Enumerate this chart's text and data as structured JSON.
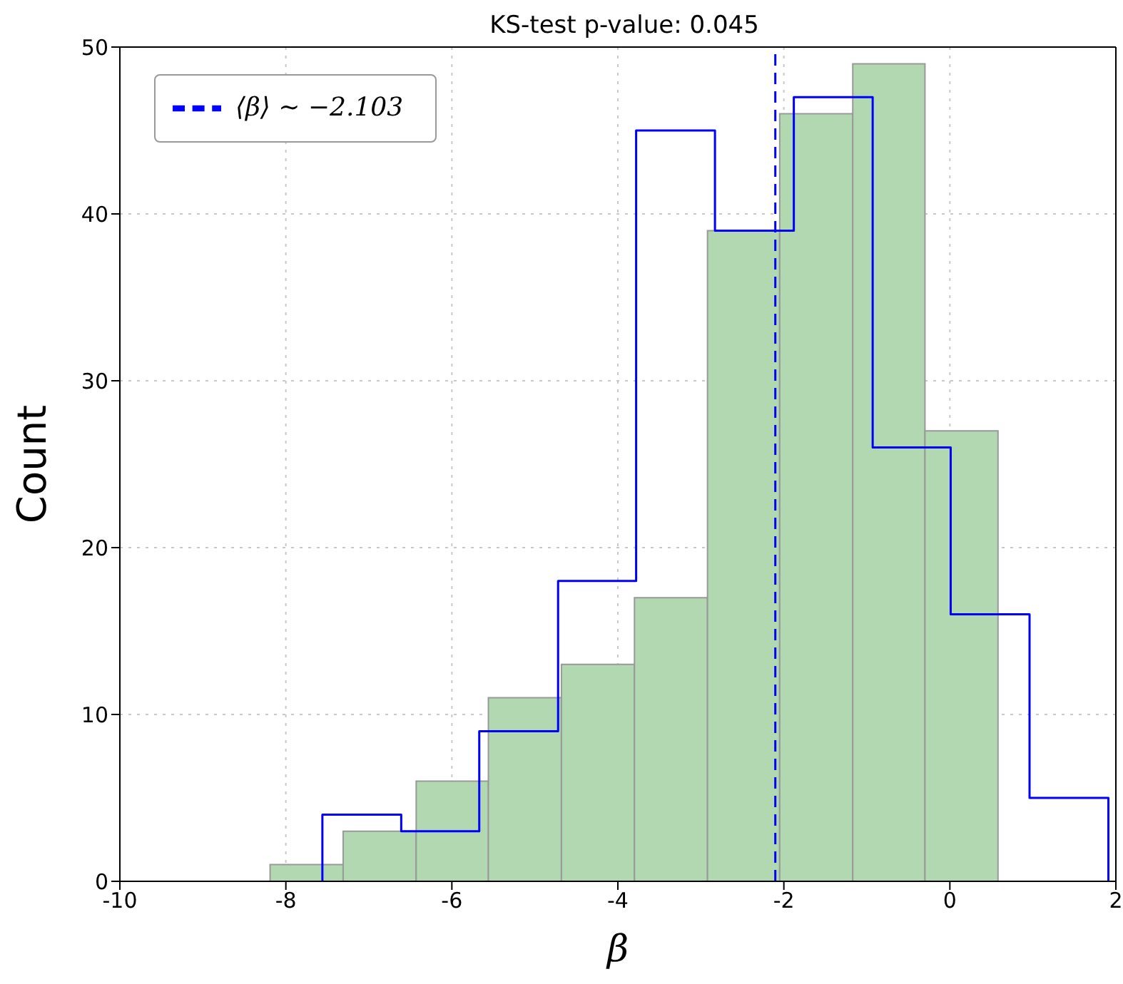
{
  "chart_data": {
    "type": "histogram",
    "title": "KS-test p-value: 0.045",
    "xlabel": "β",
    "ylabel": "Count",
    "bins": [
      -8.19,
      -7.31,
      -6.43,
      -5.56,
      -4.68,
      -3.8,
      -2.92,
      -2.05,
      -1.17,
      -0.3,
      0.58
    ],
    "series": [
      {
        "color": "#b2d8b2",
        "values": [
          1,
          3,
          6,
          11,
          13,
          17,
          39,
          46,
          49,
          27
        ]
      },
      {
        "type": "step",
        "color": "#0000ff",
        "x": [
          -7.56,
          -7.56,
          -6.61,
          -5.67,
          -4.72,
          -3.78,
          -2.83,
          -1.88,
          -0.93,
          0.01,
          0.96,
          1.91
        ],
        "values": [
          0,
          4,
          3,
          9,
          18,
          45,
          39,
          47,
          26,
          16,
          5,
          0
        ]
      },
      {
        "type": "line",
        "name": "⟨β⟩ ∼ −2.103",
        "color": "#0000ff",
        "line_style": "dashed",
        "x": [
          -2.103,
          -2.103
        ],
        "values": [
          0,
          50
        ]
      }
    ],
    "xlim": [
      -10,
      2
    ],
    "xticks": [
      -10,
      -8,
      -6,
      -4,
      -2,
      0,
      2
    ],
    "ylim": [
      0,
      50
    ],
    "yticks": [
      0,
      10,
      20,
      30,
      40,
      50
    ],
    "grid": true,
    "legend": "top left"
  }
}
